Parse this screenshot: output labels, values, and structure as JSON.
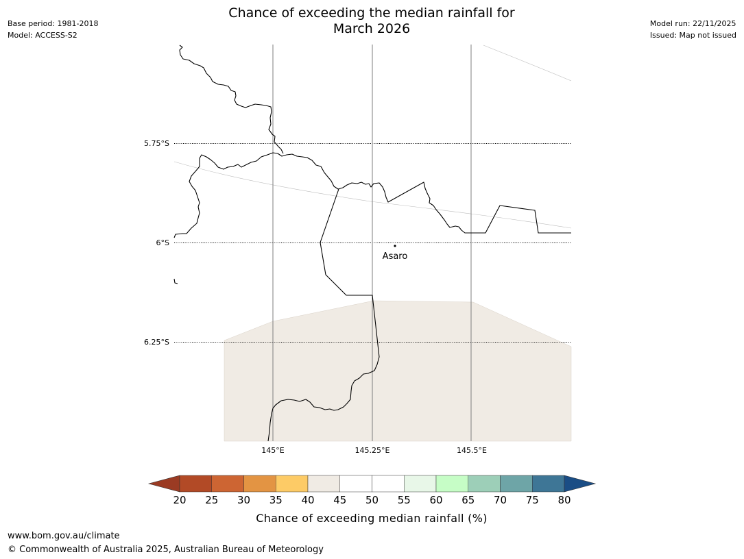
{
  "header": {
    "title_line1": "Chance of exceeding the median rainfall for",
    "title_line2": "March 2026",
    "base_period": "Base period: 1981-2018",
    "model": "Model: ACCESS-S2",
    "model_run": "Model run: 22/11/2025",
    "issued": "Issued: Map not issued"
  },
  "map": {
    "latitude_labels": [
      "5.75°S",
      "6°S",
      "6.25°S"
    ],
    "longitude_labels": [
      "145°E",
      "145.25°E",
      "145.5°E"
    ],
    "place": {
      "name": "Asaro"
    },
    "shaded_region_category": "40-45",
    "shaded_region_color": "#f0ebe4",
    "coastline_color": "#000000"
  },
  "colorbar": {
    "title": "Chance of exceeding median rainfall (%)",
    "ticks": [
      "20",
      "25",
      "30",
      "35",
      "40",
      "45",
      "50",
      "55",
      "60",
      "65",
      "70",
      "75",
      "80"
    ],
    "colors": [
      "#9b3b23",
      "#b24a26",
      "#cd6533",
      "#e39443",
      "#fdcb66",
      "#f0ebe4",
      "#ffffff",
      "#ffffff",
      "#e8f7e8",
      "#c6fdc6",
      "#9dcfb8",
      "#6ea5a7",
      "#3e7696",
      "#1a4d85"
    ]
  },
  "footer": {
    "website": "www.bom.gov.au/climate",
    "copyright": "© Commonwealth of Australia 2025, Australian Bureau of Meteorology"
  }
}
